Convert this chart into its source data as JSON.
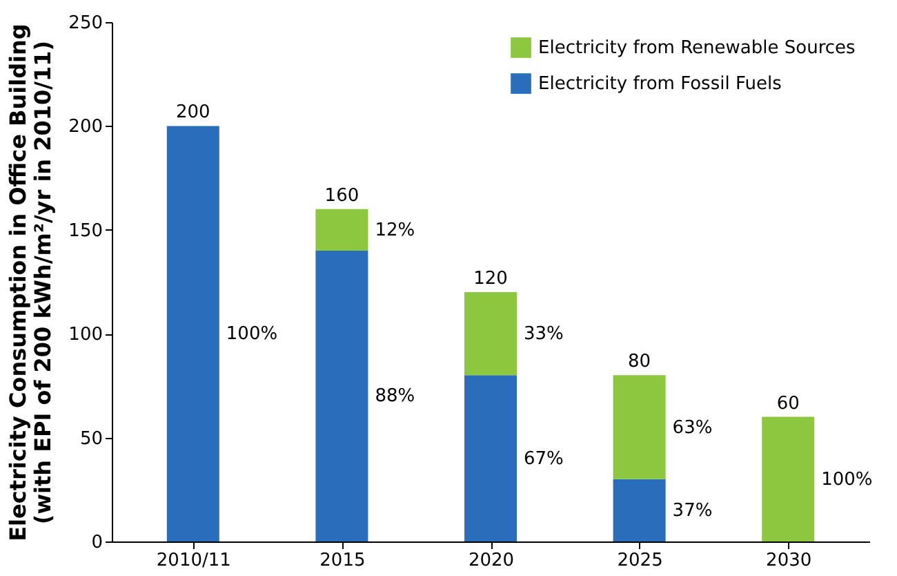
{
  "chart_data": {
    "type": "bar",
    "stacked": true,
    "ylabel": "Electricity Consumption in Office Building\n(with EPI of 200 kWh/m²/yr in 2010/11)",
    "categories": [
      "2010/11",
      "2015",
      "2020",
      "2025",
      "2030"
    ],
    "series": [
      {
        "name": "Electricity from Fossil Fuels",
        "color": "#2a6ebb",
        "values": [
          200,
          140,
          80,
          30,
          0
        ]
      },
      {
        "name": "Electricity from Renewable Sources",
        "color": "#8dc63f",
        "values": [
          0,
          20,
          40,
          50,
          60
        ]
      }
    ],
    "annotations": [
      "100%",
      "88%",
      "12%",
      "67%",
      "33%",
      "37%",
      "63%",
      "100%"
    ],
    "totals": [
      "200",
      "160",
      "120",
      "80",
      "60"
    ],
    "ylim": [
      0,
      250
    ],
    "yticks": [
      0,
      50,
      100,
      150,
      200,
      250
    ],
    "grid": false,
    "legend": "top right"
  }
}
